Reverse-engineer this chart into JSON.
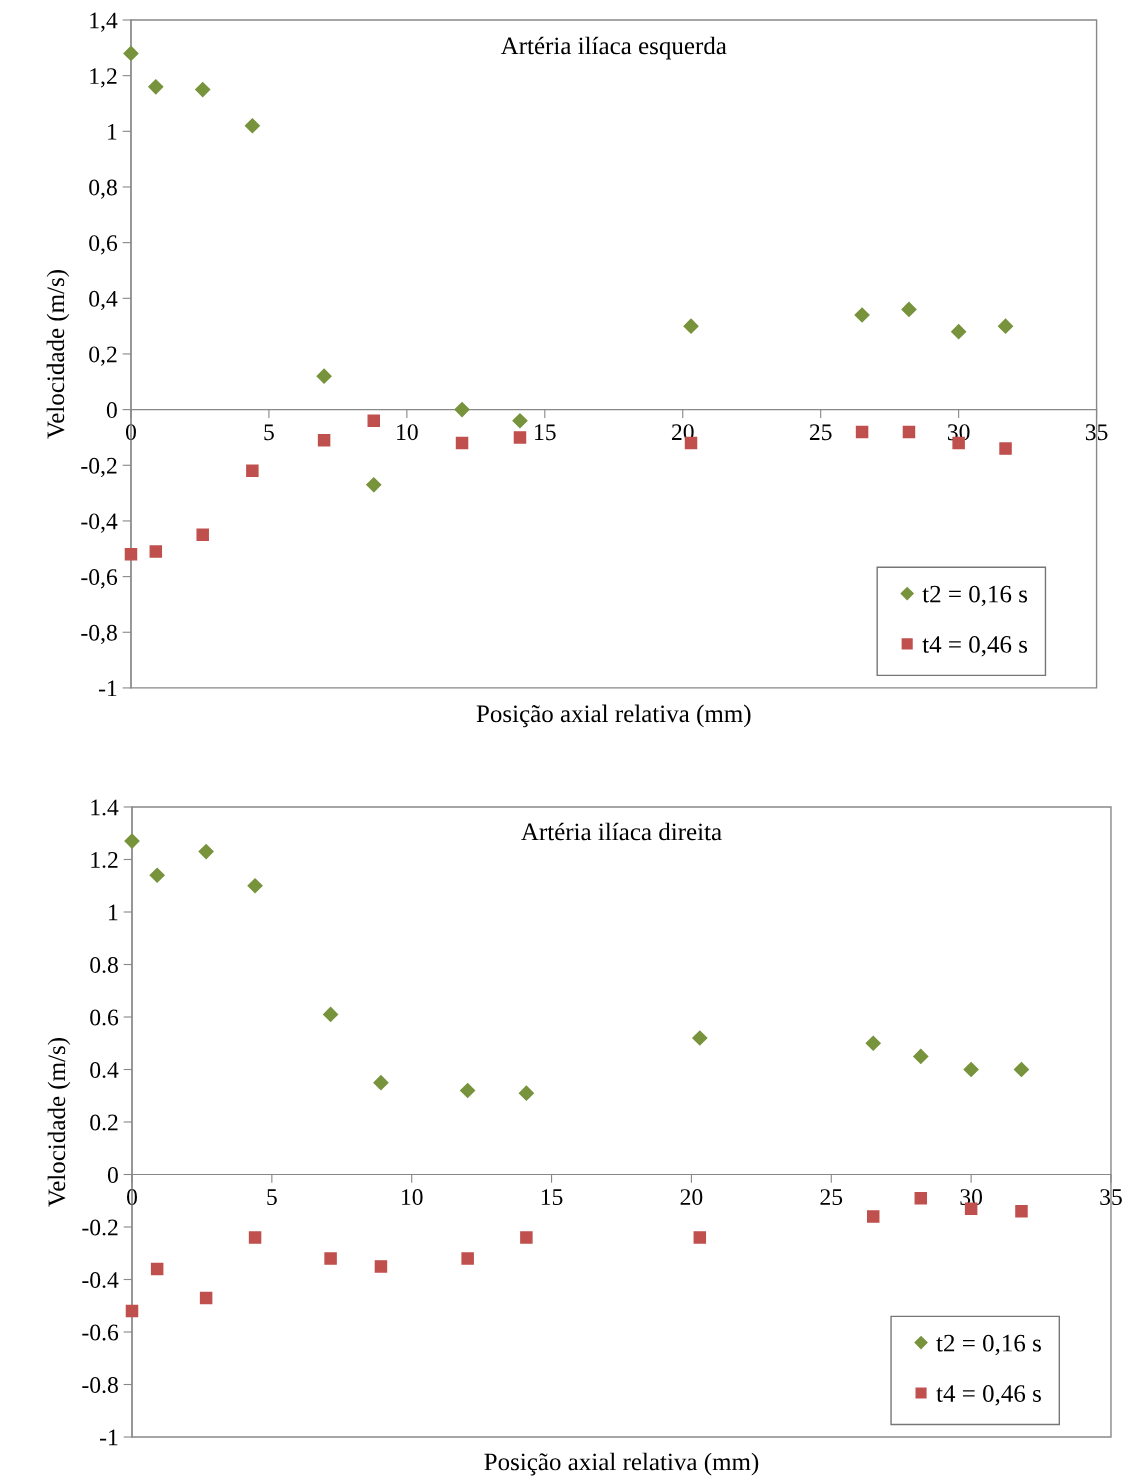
{
  "chart_data": [
    {
      "type": "scatter",
      "title": "Artéria ilíaca esquerda",
      "xlabel": "Posição axial relativa (mm)",
      "ylabel": "Velocidade (m/s)",
      "xlim": [
        0,
        35
      ],
      "ylim": [
        -1,
        1.4
      ],
      "xticks": [
        0,
        5,
        10,
        15,
        20,
        25,
        30,
        35
      ],
      "yticks": [
        {
          "value": 1.4,
          "label": "1,4"
        },
        {
          "value": 1.2,
          "label": "1,2"
        },
        1,
        {
          "value": 0.8,
          "label": "0,8"
        },
        {
          "value": 0.6,
          "label": "0,6"
        },
        {
          "value": 0.4,
          "label": "0,4"
        },
        {
          "value": 0.2,
          "label": "0,2"
        },
        0,
        {
          "value": -0.2,
          "label": "-0,2"
        },
        {
          "value": -0.4,
          "label": "-0,4"
        },
        {
          "value": -0.6,
          "label": "-0,6"
        },
        {
          "value": -0.8,
          "label": "-0,8"
        },
        -1
      ],
      "legend": "bottom right",
      "series": [
        {
          "name": "t2 = 0,16 s",
          "color": "#77933c",
          "marker": "diamond",
          "x": [
            0,
            0.9,
            2.6,
            4.4,
            7.0,
            8.8,
            12.0,
            14.1,
            20.3,
            26.5,
            28.2,
            30.0,
            31.7
          ],
          "values": [
            1.28,
            1.16,
            1.15,
            1.02,
            0.12,
            -0.27,
            0,
            -0.04,
            0.3,
            0.34,
            0.36,
            0.28,
            0.3
          ]
        },
        {
          "name": "t4 = 0,46 s",
          "color": "#c0504d",
          "marker": "square",
          "x": [
            0,
            0.9,
            2.6,
            4.4,
            7.0,
            8.8,
            12.0,
            14.1,
            20.3,
            26.5,
            28.2,
            30.0,
            31.7
          ],
          "values": [
            -0.52,
            -0.51,
            -0.45,
            -0.22,
            -0.11,
            -0.04,
            -0.12,
            -0.1,
            -0.12,
            -0.08,
            -0.08,
            -0.12,
            -0.14
          ]
        }
      ]
    },
    {
      "type": "scatter",
      "title": "Artéria ilíaca direita",
      "xlabel": "Posição axial relativa (mm)",
      "ylabel": "Velocidade (m/s)",
      "xlim": [
        0,
        35
      ],
      "ylim": [
        -1,
        1.4
      ],
      "xticks": [
        0,
        5,
        10,
        15,
        20,
        25,
        30,
        35
      ],
      "yticks": [
        1.4,
        1.2,
        1,
        0.8,
        0.6,
        0.4,
        0.2,
        0,
        {
          "value": -0.2,
          "label": "-0.2"
        },
        {
          "value": -0.4,
          "label": "-0.4"
        },
        {
          "value": -0.6,
          "label": "-0.6"
        },
        {
          "value": -0.8,
          "label": "-0.8"
        },
        -1
      ],
      "legend": "bottom right",
      "series": [
        {
          "name": "t2 = 0,16 s",
          "color": "#77933c",
          "marker": "diamond",
          "x": [
            0,
            0.9,
            2.65,
            4.4,
            7.1,
            8.9,
            12.0,
            14.1,
            20.3,
            26.5,
            28.2,
            30.0,
            31.8
          ],
          "values": [
            1.27,
            1.14,
            1.23,
            1.1,
            0.61,
            0.35,
            0.32,
            0.31,
            0.52,
            0.5,
            0.45,
            0.4,
            0.4
          ]
        },
        {
          "name": "t4 = 0,46 s",
          "color": "#c0504d",
          "marker": "square",
          "x": [
            0,
            0.9,
            2.65,
            4.4,
            7.1,
            8.9,
            12.0,
            14.1,
            20.3,
            26.5,
            28.2,
            30.0,
            31.8
          ],
          "values": [
            -0.52,
            -0.36,
            -0.47,
            -0.24,
            -0.32,
            -0.35,
            -0.32,
            -0.24,
            -0.24,
            -0.16,
            -0.09,
            -0.13,
            -0.14
          ]
        }
      ]
    }
  ]
}
